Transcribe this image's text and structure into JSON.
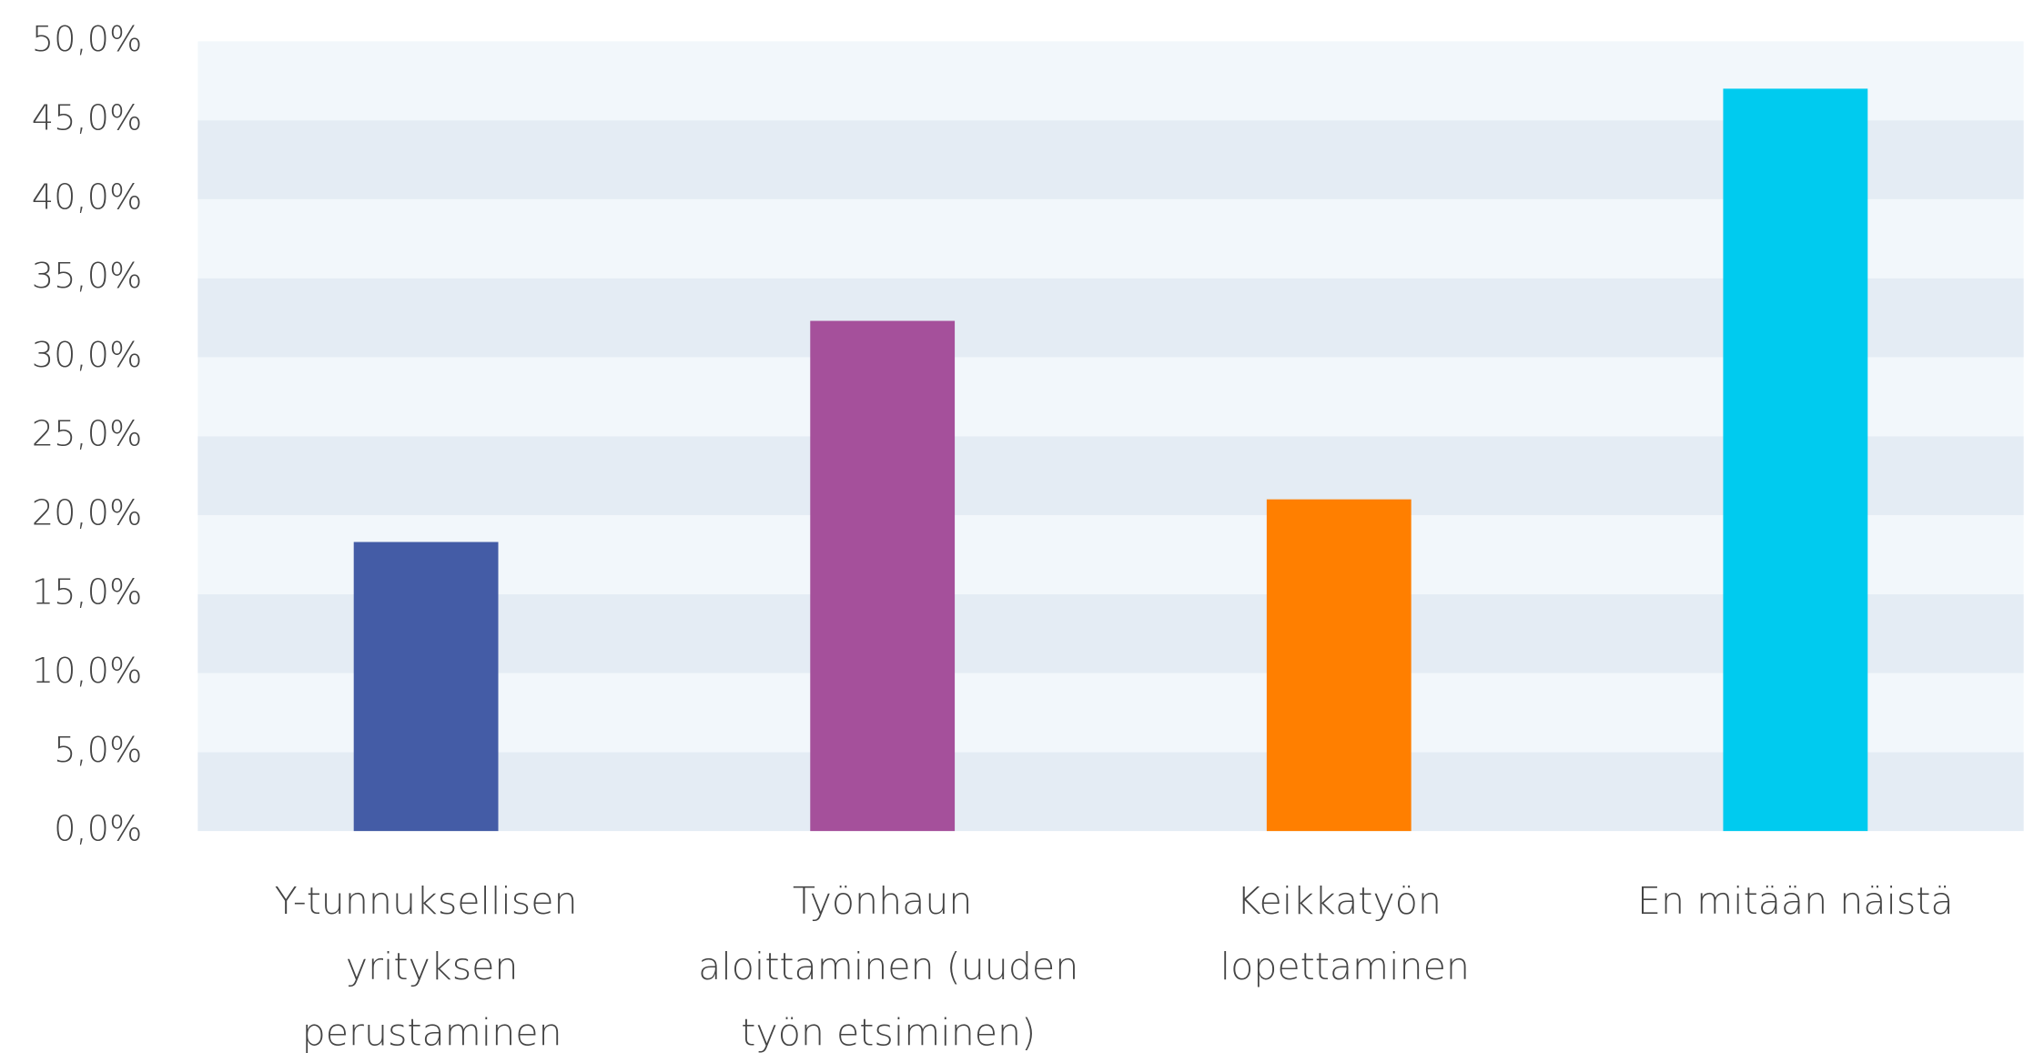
{
  "chart_data": {
    "type": "bar",
    "categories": [
      "Y-tunnuksellisen yrityksen perustaminen",
      "Työnhaun aloittaminen (uuden työn etsiminen)",
      "Keikkatyön lopettaminen",
      "En mitään näistä"
    ],
    "values": [
      18.3,
      32.3,
      21.0,
      47.0
    ],
    "colors": [
      "#445ca6",
      "#a5509b",
      "#ff7f00",
      "#00cbef"
    ],
    "ylim": [
      0,
      50
    ],
    "yticks": [
      {
        "value": 0,
        "label": "0,0%"
      },
      {
        "value": 5,
        "label": "5,0%"
      },
      {
        "value": 10,
        "label": "10,0%"
      },
      {
        "value": 15,
        "label": "15,0%"
      },
      {
        "value": 20,
        "label": "20,0%"
      },
      {
        "value": 25,
        "label": "25,0%"
      },
      {
        "value": 30,
        "label": "30,0%"
      },
      {
        "value": 35,
        "label": "35,0%"
      },
      {
        "value": 40,
        "label": "40,0%"
      },
      {
        "value": 45,
        "label": "45,0%"
      },
      {
        "value": 50,
        "label": "50,0%"
      }
    ],
    "grid": true
  }
}
